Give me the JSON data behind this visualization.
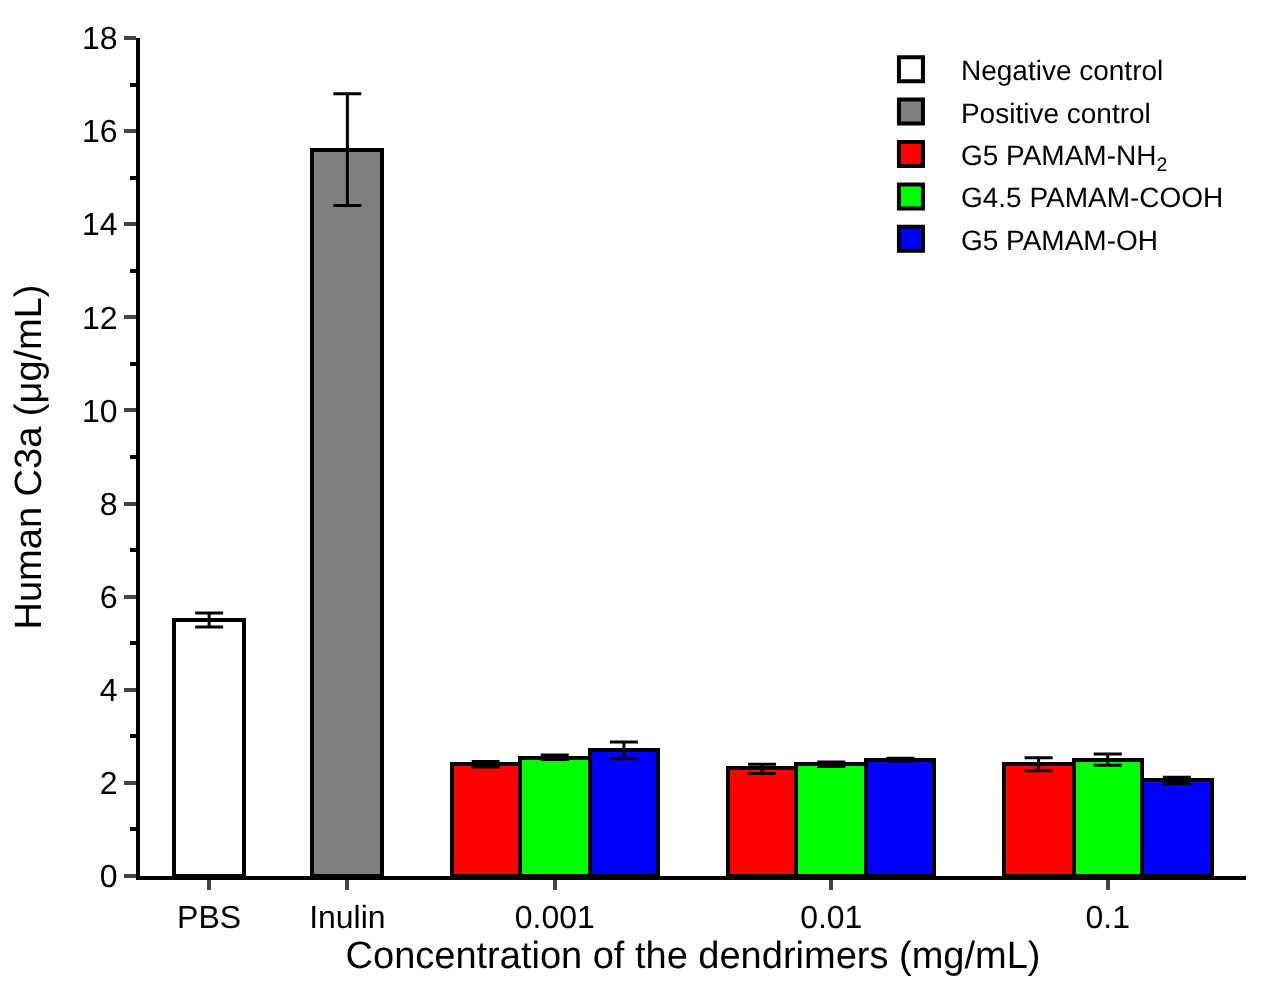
{
  "chart_data": {
    "type": "bar",
    "xlabel": "Concentration of the dendrimers (mg/mL)",
    "ylabel": "Human C3a (μg/mL)",
    "categories": [
      "PBS",
      "Inulin",
      "0.001",
      "0.01",
      "0.1"
    ],
    "series": [
      {
        "name": "Negative control",
        "color": "#ffffff",
        "values": [
          5.5,
          null,
          null,
          null,
          null
        ],
        "errors": [
          0.15,
          null,
          null,
          null,
          null
        ]
      },
      {
        "name": "Positive control",
        "color": "#808080",
        "values": [
          null,
          15.6,
          null,
          null,
          null
        ],
        "errors": [
          null,
          1.2,
          null,
          null,
          null
        ]
      },
      {
        "name": "G5 PAMAM-NH$_{2}$",
        "color": "#ff0000",
        "values": [
          null,
          null,
          2.4,
          2.3,
          2.4
        ],
        "errors": [
          null,
          null,
          0.06,
          0.1,
          0.14
        ]
      },
      {
        "name": "G4.5 PAMAM-COOH",
        "color": "#00ff00",
        "values": [
          null,
          null,
          2.55,
          2.4,
          2.5
        ],
        "errors": [
          null,
          null,
          0.05,
          0.05,
          0.12
        ]
      },
      {
        "name": "G5 PAMAM-OH",
        "color": "#0000ff",
        "values": [
          null,
          null,
          2.7,
          2.5,
          2.05
        ],
        "errors": [
          null,
          null,
          0.18,
          0.03,
          0.07
        ]
      }
    ],
    "ylim": [
      0,
      18
    ],
    "yticks": [
      0,
      2,
      4,
      6,
      8,
      10,
      12,
      14,
      16,
      18
    ],
    "legend": "top right"
  }
}
